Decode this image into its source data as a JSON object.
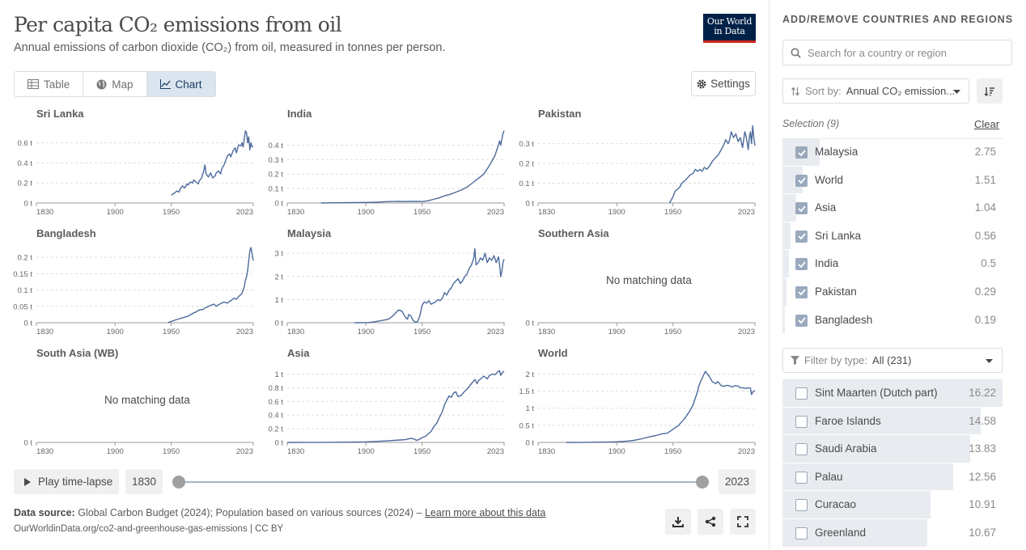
{
  "header": {
    "title": "Per capita CO₂ emissions from oil",
    "subtitle": "Annual emissions of carbon dioxide (CO₂) from oil, measured in tonnes per person.",
    "logo_line1": "Our World",
    "logo_line2": "in Data"
  },
  "tabs": [
    {
      "label": "Table",
      "icon": "table-icon"
    },
    {
      "label": "Map",
      "icon": "globe-icon"
    },
    {
      "label": "Chart",
      "icon": "line-chart-icon",
      "active": true
    }
  ],
  "settings_label": "Settings",
  "no_data_label": "No matching data",
  "colors": {
    "line": "#4c6a9c",
    "grid": "#dddddd",
    "axis": "#999999"
  },
  "chart_data": [
    {
      "type": "line",
      "title": "Sri Lanka",
      "xlim": [
        1830,
        2023
      ],
      "xticks": [
        1830,
        1900,
        1950,
        2023
      ],
      "ylim": [
        0,
        0.75
      ],
      "yticks": [
        0,
        0.2,
        0.4,
        0.6
      ],
      "ytick_labels": [
        "0 t",
        "0.2 t",
        "0.4 t",
        "0.6 t"
      ],
      "x": [
        1950,
        1953,
        1955,
        1957,
        1958,
        1960,
        1962,
        1964,
        1965,
        1967,
        1969,
        1970,
        1972,
        1974,
        1975,
        1977,
        1979,
        1980,
        1981,
        1983,
        1985,
        1987,
        1989,
        1990,
        1992,
        1994,
        1995,
        1997,
        1999,
        2000,
        2002,
        2003,
        2005,
        2007,
        2008,
        2010,
        2012,
        2013,
        2014,
        2015,
        2016,
        2017,
        2018,
        2019,
        2020,
        2021,
        2022,
        2023
      ],
      "y": [
        0.08,
        0.1,
        0.12,
        0.11,
        0.14,
        0.17,
        0.15,
        0.19,
        0.18,
        0.21,
        0.2,
        0.23,
        0.21,
        0.19,
        0.22,
        0.25,
        0.32,
        0.38,
        0.29,
        0.26,
        0.3,
        0.25,
        0.27,
        0.3,
        0.32,
        0.29,
        0.34,
        0.38,
        0.44,
        0.47,
        0.49,
        0.46,
        0.52,
        0.55,
        0.5,
        0.58,
        0.57,
        0.6,
        0.56,
        0.64,
        0.72,
        0.7,
        0.6,
        0.66,
        0.53,
        0.6,
        0.56,
        0.56
      ]
    },
    {
      "type": "line",
      "title": "India",
      "xlim": [
        1830,
        2023
      ],
      "xticks": [
        1830,
        1900,
        1950,
        2023
      ],
      "ylim": [
        0,
        0.52
      ],
      "yticks": [
        0,
        0.1,
        0.2,
        0.3,
        0.4
      ],
      "ytick_labels": [
        "0 t",
        "0.1 t",
        "0.2 t",
        "0.3 t",
        "0.4 t"
      ],
      "x": [
        1860,
        1880,
        1900,
        1910,
        1920,
        1930,
        1935,
        1940,
        1945,
        1950,
        1955,
        1960,
        1965,
        1970,
        1975,
        1980,
        1985,
        1990,
        1995,
        2000,
        2005,
        2010,
        2015,
        2017,
        2018,
        2019,
        2020,
        2021,
        2022,
        2023
      ],
      "y": [
        0.0,
        0.002,
        0.004,
        0.006,
        0.01,
        0.012,
        0.01,
        0.011,
        0.012,
        0.01,
        0.015,
        0.025,
        0.035,
        0.05,
        0.06,
        0.075,
        0.09,
        0.11,
        0.14,
        0.17,
        0.2,
        0.26,
        0.33,
        0.38,
        0.4,
        0.43,
        0.4,
        0.44,
        0.48,
        0.5
      ]
    },
    {
      "type": "line",
      "title": "Pakistan",
      "xlim": [
        1830,
        2023
      ],
      "xticks": [
        1830,
        1900,
        1950,
        2023
      ],
      "ylim": [
        0,
        0.38
      ],
      "yticks": [
        0,
        0.1,
        0.2,
        0.3
      ],
      "ytick_labels": [
        "0 t",
        "0.1 t",
        "0.2 t",
        "0.3 t"
      ],
      "x": [
        1947,
        1949,
        1950,
        1952,
        1954,
        1956,
        1958,
        1960,
        1962,
        1965,
        1968,
        1970,
        1972,
        1974,
        1976,
        1978,
        1980,
        1983,
        1985,
        1988,
        1990,
        1992,
        1995,
        1997,
        1999,
        2000,
        2002,
        2004,
        2006,
        2008,
        2010,
        2012,
        2014,
        2015,
        2016,
        2017,
        2018,
        2019,
        2020,
        2021,
        2022,
        2023
      ],
      "y": [
        0.0,
        0.02,
        0.03,
        0.06,
        0.07,
        0.08,
        0.1,
        0.11,
        0.12,
        0.14,
        0.15,
        0.17,
        0.16,
        0.17,
        0.16,
        0.18,
        0.17,
        0.19,
        0.21,
        0.23,
        0.24,
        0.26,
        0.29,
        0.32,
        0.3,
        0.31,
        0.36,
        0.33,
        0.35,
        0.31,
        0.33,
        0.28,
        0.36,
        0.34,
        0.31,
        0.27,
        0.33,
        0.36,
        0.3,
        0.39,
        0.33,
        0.29
      ]
    },
    {
      "type": "line",
      "title": "Bangladesh",
      "xlim": [
        1830,
        2023
      ],
      "xticks": [
        1830,
        1900,
        1950,
        2023
      ],
      "ylim": [
        0,
        0.23
      ],
      "yticks": [
        0,
        0.05,
        0.1,
        0.15,
        0.2
      ],
      "ytick_labels": [
        "0 t",
        "0.05 t",
        "0.1 t",
        "0.15 t",
        "0.2 t"
      ],
      "x": [
        1947,
        1950,
        1955,
        1960,
        1965,
        1970,
        1972,
        1974,
        1976,
        1978,
        1980,
        1983,
        1985,
        1988,
        1990,
        1992,
        1995,
        1997,
        2000,
        2002,
        2004,
        2006,
        2008,
        2010,
        2012,
        2013,
        2014,
        2015,
        2016,
        2017,
        2018,
        2019,
        2020,
        2021,
        2022,
        2023
      ],
      "y": [
        0.0,
        0.004,
        0.01,
        0.015,
        0.02,
        0.03,
        0.033,
        0.037,
        0.04,
        0.04,
        0.045,
        0.05,
        0.053,
        0.057,
        0.05,
        0.055,
        0.06,
        0.063,
        0.06,
        0.065,
        0.07,
        0.075,
        0.072,
        0.08,
        0.086,
        0.09,
        0.1,
        0.11,
        0.13,
        0.14,
        0.16,
        0.19,
        0.22,
        0.23,
        0.21,
        0.19
      ]
    },
    {
      "type": "line",
      "title": "Malaysia",
      "xlim": [
        1830,
        2023
      ],
      "xticks": [
        1830,
        1900,
        1950,
        2023
      ],
      "ylim": [
        0,
        3.25
      ],
      "yticks": [
        0,
        1,
        2,
        3
      ],
      "ytick_labels": [
        "0 t",
        "1 t",
        "2 t",
        "3 t"
      ],
      "x": [
        1890,
        1900,
        1905,
        1910,
        1915,
        1920,
        1923,
        1926,
        1929,
        1932,
        1935,
        1937,
        1938,
        1940,
        1942,
        1944,
        1946,
        1948,
        1950,
        1952,
        1954,
        1956,
        1958,
        1960,
        1962,
        1964,
        1966,
        1968,
        1970,
        1972,
        1974,
        1976,
        1978,
        1980,
        1982,
        1984,
        1986,
        1988,
        1990,
        1992,
        1994,
        1996,
        1997,
        1998,
        2000,
        2002,
        2004,
        2006,
        2008,
        2010,
        2012,
        2014,
        2016,
        2018,
        2019,
        2020,
        2021,
        2022,
        2023
      ],
      "y": [
        0.0,
        0.005,
        0.02,
        0.06,
        0.1,
        0.15,
        0.25,
        0.4,
        0.55,
        0.5,
        0.25,
        0.15,
        0.35,
        0.3,
        0.1,
        0.02,
        0.05,
        0.3,
        0.75,
        0.9,
        0.85,
        0.95,
        0.8,
        0.85,
        0.9,
        1.0,
        0.95,
        1.05,
        1.3,
        1.2,
        1.4,
        1.5,
        1.7,
        1.8,
        1.9,
        1.7,
        1.8,
        2.0,
        2.1,
        2.35,
        2.5,
        2.8,
        3.2,
        2.5,
        2.6,
        2.8,
        2.7,
        3.0,
        2.6,
        2.8,
        2.7,
        2.9,
        2.6,
        2.85,
        2.5,
        2.0,
        2.2,
        2.6,
        2.75
      ]
    },
    {
      "type": "line",
      "title": "Southern Asia",
      "xlim": [
        1830,
        2023
      ],
      "xticks": [
        1830,
        1900,
        1950,
        2023
      ],
      "yticks": [
        0
      ],
      "ytick_labels": [
        "0 t"
      ],
      "x": [],
      "y": []
    },
    {
      "type": "line",
      "title": "South Asia (WB)",
      "xlim": [
        1830,
        2023
      ],
      "xticks": [
        1830,
        1900,
        1950,
        2023
      ],
      "yticks": [
        0
      ],
      "ytick_labels": [
        "0 t"
      ],
      "x": [],
      "y": []
    },
    {
      "type": "line",
      "title": "Asia",
      "xlim": [
        1830,
        2023
      ],
      "xticks": [
        1830,
        1900,
        1950,
        2023
      ],
      "ylim": [
        0,
        1.1
      ],
      "yticks": [
        0,
        0.2,
        0.4,
        0.6,
        0.8,
        1
      ],
      "ytick_labels": [
        "0 t",
        "0.2 t",
        "0.4 t",
        "0.6 t",
        "0.8 t",
        "1 t"
      ],
      "x": [
        1830,
        1860,
        1880,
        1900,
        1910,
        1920,
        1930,
        1935,
        1940,
        1943,
        1945,
        1947,
        1950,
        1953,
        1955,
        1958,
        1960,
        1963,
        1965,
        1968,
        1970,
        1972,
        1974,
        1976,
        1978,
        1980,
        1982,
        1985,
        1988,
        1990,
        1993,
        1995,
        1997,
        1999,
        2000,
        2003,
        2005,
        2008,
        2010,
        2013,
        2015,
        2017,
        2019,
        2020,
        2021,
        2022,
        2023
      ],
      "y": [
        0.0,
        0.001,
        0.003,
        0.008,
        0.015,
        0.025,
        0.035,
        0.04,
        0.06,
        0.05,
        0.03,
        0.04,
        0.07,
        0.09,
        0.12,
        0.16,
        0.22,
        0.28,
        0.35,
        0.45,
        0.55,
        0.62,
        0.68,
        0.66,
        0.72,
        0.74,
        0.67,
        0.69,
        0.75,
        0.78,
        0.84,
        0.88,
        0.92,
        0.86,
        0.9,
        0.94,
        0.97,
        0.93,
        0.98,
        1.0,
        0.99,
        1.03,
        1.05,
        0.98,
        1.01,
        1.03,
        1.04
      ]
    },
    {
      "type": "line",
      "title": "World",
      "xlim": [
        1830,
        2023
      ],
      "xticks": [
        1830,
        1900,
        1950,
        2023
      ],
      "ylim": [
        0,
        2.2
      ],
      "yticks": [
        0,
        0.5,
        1,
        1.5,
        2
      ],
      "ytick_labels": [
        "0 t",
        "0.5 t",
        "1 t",
        "1.5 t",
        "2 t"
      ],
      "x": [
        1855,
        1870,
        1880,
        1890,
        1900,
        1910,
        1915,
        1920,
        1925,
        1930,
        1935,
        1940,
        1945,
        1950,
        1955,
        1960,
        1965,
        1968,
        1970,
        1972,
        1973,
        1975,
        1977,
        1979,
        1980,
        1982,
        1985,
        1988,
        1990,
        1993,
        1995,
        1998,
        2000,
        2003,
        2005,
        2008,
        2010,
        2012,
        2015,
        2018,
        2019,
        2020,
        2021,
        2022,
        2023
      ],
      "y": [
        0.0,
        0.003,
        0.006,
        0.01,
        0.02,
        0.04,
        0.06,
        0.09,
        0.13,
        0.17,
        0.2,
        0.25,
        0.27,
        0.38,
        0.5,
        0.68,
        0.92,
        1.1,
        1.3,
        1.5,
        1.65,
        1.8,
        1.95,
        2.08,
        2.02,
        1.95,
        1.78,
        1.72,
        1.78,
        1.66,
        1.64,
        1.67,
        1.66,
        1.62,
        1.66,
        1.65,
        1.6,
        1.6,
        1.58,
        1.6,
        1.59,
        1.4,
        1.47,
        1.5,
        1.51
      ]
    }
  ],
  "timeline": {
    "play_label": "Play time-lapse",
    "start_year": "1830",
    "end_year": "2023"
  },
  "footer": {
    "source_label": "Data source:",
    "source_text": "Global Carbon Budget (2024); Population based on various sources (2024) –",
    "learn_more": "Learn more about this data",
    "url": "OurWorldinData.org/co2-and-greenhouse-gas-emissions | CC BY"
  },
  "sidebar": {
    "heading": "ADD/REMOVE COUNTRIES AND REGIONS",
    "search_placeholder": "Search for a country or region",
    "sort_label": "Sort by:",
    "sort_value": "Annual CO₂ emission...",
    "selection_label": "Selection (9)",
    "clear_label": "Clear",
    "selected": [
      {
        "name": "Malaysia",
        "value": "2.75",
        "share": 0.17
      },
      {
        "name": "World",
        "value": "1.51",
        "share": 0.093
      },
      {
        "name": "Asia",
        "value": "1.04",
        "share": 0.064
      },
      {
        "name": "Sri Lanka",
        "value": "0.56",
        "share": 0.035
      },
      {
        "name": "India",
        "value": "0.5",
        "share": 0.031
      },
      {
        "name": "Pakistan",
        "value": "0.29",
        "share": 0.018
      },
      {
        "name": "Bangladesh",
        "value": "0.19",
        "share": 0.012
      }
    ],
    "filter_label": "Filter by type:",
    "filter_value": "All (231)",
    "available": [
      {
        "name": "Sint Maarten (Dutch part)",
        "value": "16.22",
        "share": 1.0
      },
      {
        "name": "Faroe Islands",
        "value": "14.58",
        "share": 0.9
      },
      {
        "name": "Saudi Arabia",
        "value": "13.83",
        "share": 0.853
      },
      {
        "name": "Palau",
        "value": "12.56",
        "share": 0.774
      },
      {
        "name": "Curacao",
        "value": "10.91",
        "share": 0.673
      },
      {
        "name": "Greenland",
        "value": "10.67",
        "share": 0.658
      }
    ]
  }
}
